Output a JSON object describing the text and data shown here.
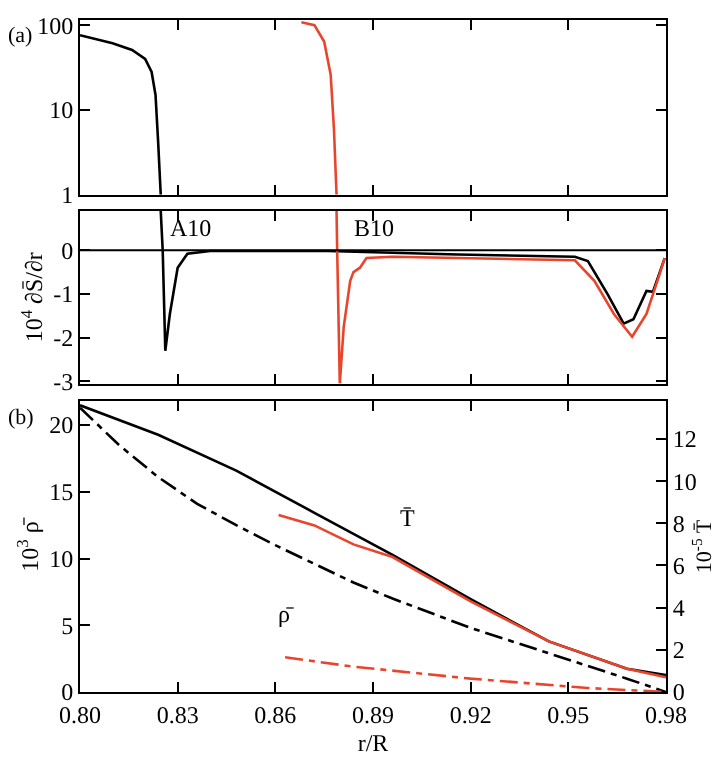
{
  "chart_data": [
    {
      "type": "line",
      "title": "(a)",
      "log": "y",
      "ylim": [
        1,
        115
      ],
      "yticks": [
        1,
        10,
        100
      ],
      "xlim": [
        0.8,
        0.98
      ],
      "xticks": [
        0.8,
        0.83,
        0.86,
        0.89,
        0.92,
        0.95,
        0.98
      ],
      "tick_labels": "y",
      "series": [
        {
          "color": "#000000",
          "line_style": "solid",
          "x": [
            0.8,
            0.81,
            0.816,
            0.82,
            0.822,
            0.8232,
            0.824,
            0.8248
          ],
          "values": [
            76,
            61,
            51,
            40,
            28,
            15,
            4.2,
            1
          ]
        },
        {
          "color": "#e8452c",
          "line_style": "solid",
          "x": [
            0.868,
            0.872,
            0.875,
            0.877,
            0.878,
            0.8788
          ],
          "values": [
            108,
            100,
            64,
            26,
            6,
            1
          ]
        }
      ]
    },
    {
      "type": "line",
      "ylabel": "10$^{4}$ ∂S̄/∂r",
      "ylim": [
        -3.05,
        0.9
      ],
      "yticks": [
        -3,
        -2,
        -1,
        0
      ],
      "xlim": [
        0.8,
        0.98
      ],
      "xticks": [
        0.8,
        0.83,
        0.86,
        0.89,
        0.92,
        0.95,
        0.98
      ],
      "tick_labels": "y",
      "ref_lines": [
        {
          "axis": "y",
          "value": 0,
          "color": "#000000"
        }
      ],
      "annotations": [
        "A10",
        "B10"
      ],
      "series": [
        {
          "color": "#000000",
          "line_style": "solid",
          "x": [
            0.8248,
            0.8254,
            0.8262,
            0.8276,
            0.83,
            0.833,
            0.84,
            0.876,
            0.916,
            0.952,
            0.956,
            0.962,
            0.967,
            0.97,
            0.974,
            0.976,
            0.9796
          ],
          "values": [
            0.9,
            0,
            -2.3,
            -1.46,
            -0.4,
            -0.08,
            -0.02,
            -0.02,
            -0.1,
            -0.15,
            -0.25,
            -1.0,
            -1.68,
            -1.58,
            -0.93,
            -0.95,
            -0.18
          ]
        },
        {
          "color": "#e8452c",
          "line_style": "solid",
          "x": [
            0.8788,
            0.879,
            0.8798,
            0.881,
            0.883,
            0.884,
            0.886,
            0.888,
            0.896,
            0.952,
            0.958,
            0.964,
            0.9696,
            0.974,
            0.978,
            0.9796
          ],
          "values": [
            0.9,
            0,
            -3.05,
            -1.76,
            -0.7,
            -0.5,
            -0.4,
            -0.18,
            -0.15,
            -0.23,
            -0.7,
            -1.46,
            -1.98,
            -1.46,
            -0.56,
            -0.18
          ]
        }
      ]
    },
    {
      "type": "line",
      "title": "(b)",
      "xlabel": "r/R",
      "ylabel": "10$^{3}$ ρ̄",
      "y2label": "10$^{-5}$ T̄",
      "ylim": [
        0,
        21.8
      ],
      "yticks": [
        0,
        5,
        10,
        15,
        20
      ],
      "y2lim": [
        0,
        13.8
      ],
      "y2ticks": [
        0,
        2,
        4,
        6,
        8,
        10,
        12
      ],
      "xlim": [
        0.8,
        0.98
      ],
      "xticks": [
        {
          "value": 0.8,
          "label": "0.80"
        },
        0.83,
        0.86,
        0.89,
        0.92,
        0.95,
        0.98
      ],
      "annotations": [
        "T̄",
        "ρ̄"
      ],
      "series": [
        {
          "color": "#000000",
          "line_style": "solid",
          "axis": "y2",
          "x": [
            0.8,
            0.824,
            0.848,
            0.872,
            0.896,
            0.92,
            0.944,
            0.968,
            0.98
          ],
          "values": [
            13.6,
            12.2,
            10.5,
            8.5,
            6.5,
            4.4,
            2.4,
            1.1,
            0.8
          ]
        },
        {
          "color": "#e8452c",
          "line_style": "solid",
          "axis": "y2",
          "x": [
            0.861,
            0.872,
            0.884,
            0.896,
            0.92,
            0.944,
            0.968,
            0.98
          ],
          "values": [
            8.4,
            7.9,
            7.0,
            6.4,
            4.3,
            2.4,
            1.1,
            0.7
          ]
        },
        {
          "color": "#000000",
          "line_style": "dashdot",
          "x": [
            0.8,
            0.812,
            0.824,
            0.836,
            0.848,
            0.86,
            0.872,
            0.884,
            0.896,
            0.92,
            0.944,
            0.968,
            0.98
          ],
          "values": [
            21.3,
            18.5,
            16.1,
            14.1,
            12.5,
            11.0,
            9.6,
            8.2,
            7.0,
            4.8,
            2.9,
            1.0,
            0
          ]
        },
        {
          "color": "#e8452c",
          "line_style": "dashdot",
          "x": [
            0.863,
            0.884,
            0.92,
            0.956,
            0.98
          ],
          "values": [
            2.6,
            1.9,
            1.0,
            0.3,
            0
          ]
        }
      ]
    }
  ]
}
